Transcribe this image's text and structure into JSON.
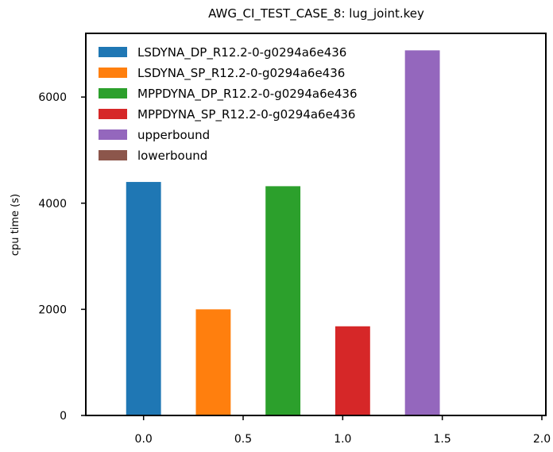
{
  "chart_data": {
    "type": "bar",
    "title": "AWG_CI_TEST_CASE_8: lug_joint.key",
    "xlabel": "",
    "ylabel": "cpu time (s)",
    "xlim": [
      -0.29,
      2.02
    ],
    "ylim": [
      0,
      7200
    ],
    "xticks": [
      0.0,
      0.5,
      1.0,
      1.5,
      2.0
    ],
    "xtick_labels": [
      "0.0",
      "0.5",
      "1.0",
      "1.5",
      "2.0"
    ],
    "yticks": [
      0,
      2000,
      4000,
      6000
    ],
    "ytick_labels": [
      "0",
      "2000",
      "4000",
      "6000"
    ],
    "bar_width": 0.175,
    "grid": false,
    "legend_position": "top-left",
    "series": [
      {
        "name": "LSDYNA_DP_R12.2-0-g0294a6e436",
        "x": 0.0,
        "value": 4400,
        "color": "#1f77b4"
      },
      {
        "name": "LSDYNA_SP_R12.2-0-g0294a6e436",
        "x": 0.35,
        "value": 2000,
        "color": "#ff7f0e"
      },
      {
        "name": "MPPDYNA_DP_R12.2-0-g0294a6e436",
        "x": 0.7,
        "value": 4320,
        "color": "#2ca02c"
      },
      {
        "name": "MPPDYNA_SP_R12.2-0-g0294a6e436",
        "x": 1.05,
        "value": 1680,
        "color": "#d62728"
      },
      {
        "name": "upperbound",
        "x": 1.4,
        "value": 6880,
        "color": "#9467bd"
      },
      {
        "name": "lowerbound",
        "x": 1.75,
        "value": 0,
        "color": "#8c564b"
      }
    ]
  }
}
